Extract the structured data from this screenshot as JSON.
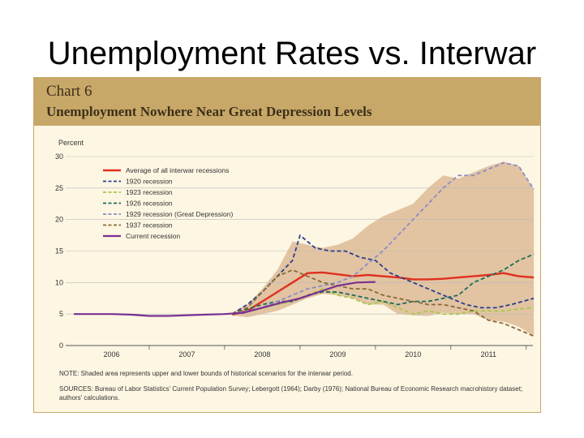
{
  "slide_title": "Unemployment Rates vs. Interwar",
  "chart_data": {
    "type": "line",
    "chart_number": "Chart 6",
    "title": "Unemployment Nowhere Near Great Depression Levels",
    "ylabel": "Percent",
    "ylim": [
      0,
      30
    ],
    "y_ticks": [
      0,
      5,
      10,
      15,
      20,
      25,
      30
    ],
    "x_range": [
      2005.5,
      2011.75
    ],
    "x_ticks": [
      2006,
      2007,
      2008,
      2009,
      2010,
      2011
    ],
    "x_tick_labels": [
      "2006",
      "2007",
      "2008",
      "2009",
      "2010",
      "2011"
    ],
    "band": {
      "name": "Shaded area: upper and lower bounds of historical scenarios",
      "color": "#e2c4a2",
      "upper": [
        [
          2007.6,
          5.2
        ],
        [
          2007.8,
          6.5
        ],
        [
          2008.0,
          9.0
        ],
        [
          2008.2,
          12.0
        ],
        [
          2008.4,
          16.5
        ],
        [
          2008.6,
          16.0
        ],
        [
          2008.8,
          15.5
        ],
        [
          2009.0,
          16.0
        ],
        [
          2009.2,
          17.0
        ],
        [
          2009.4,
          19.0
        ],
        [
          2009.6,
          20.5
        ],
        [
          2009.8,
          21.5
        ],
        [
          2010.0,
          22.5
        ],
        [
          2010.2,
          25.0
        ],
        [
          2010.4,
          27.0
        ],
        [
          2010.6,
          26.5
        ],
        [
          2010.8,
          27.5
        ],
        [
          2011.0,
          28.5
        ],
        [
          2011.2,
          29.2
        ],
        [
          2011.4,
          28.5
        ],
        [
          2011.6,
          24.8
        ]
      ],
      "lower": [
        [
          2011.6,
          1.5
        ],
        [
          2011.4,
          3.0
        ],
        [
          2011.2,
          3.8
        ],
        [
          2011.0,
          4.0
        ],
        [
          2010.8,
          5.0
        ],
        [
          2010.6,
          5.0
        ],
        [
          2010.4,
          5.2
        ],
        [
          2010.2,
          4.7
        ],
        [
          2010.0,
          4.8
        ],
        [
          2009.8,
          5.0
        ],
        [
          2009.6,
          6.5
        ],
        [
          2009.4,
          6.5
        ],
        [
          2009.2,
          7.5
        ],
        [
          2009.0,
          8.0
        ],
        [
          2008.8,
          8.2
        ],
        [
          2008.6,
          7.5
        ],
        [
          2008.4,
          6.5
        ],
        [
          2008.2,
          5.5
        ],
        [
          2008.0,
          5.0
        ],
        [
          2007.8,
          4.5
        ],
        [
          2007.6,
          4.8
        ]
      ]
    },
    "series": [
      {
        "name": "Average of all interwar recessions",
        "color": "#e03020",
        "style": "solid",
        "width": 2.4,
        "points": [
          [
            2007.6,
            4.9
          ],
          [
            2007.8,
            5.5
          ],
          [
            2008.0,
            7.0
          ],
          [
            2008.2,
            8.5
          ],
          [
            2008.4,
            10.0
          ],
          [
            2008.6,
            11.5
          ],
          [
            2008.8,
            11.6
          ],
          [
            2009.0,
            11.3
          ],
          [
            2009.2,
            11.0
          ],
          [
            2009.4,
            11.2
          ],
          [
            2009.6,
            11.0
          ],
          [
            2009.8,
            10.8
          ],
          [
            2010.0,
            10.5
          ],
          [
            2010.2,
            10.5
          ],
          [
            2010.4,
            10.6
          ],
          [
            2010.6,
            10.8
          ],
          [
            2010.8,
            11.0
          ],
          [
            2011.0,
            11.2
          ],
          [
            2011.2,
            11.5
          ],
          [
            2011.4,
            11.0
          ],
          [
            2011.6,
            10.8
          ]
        ]
      },
      {
        "name": "1920 recession",
        "color": "#2a3f8f",
        "style": "dashed",
        "width": 1.8,
        "points": [
          [
            2007.6,
            5.0
          ],
          [
            2007.8,
            6.5
          ],
          [
            2008.0,
            8.5
          ],
          [
            2008.2,
            11.0
          ],
          [
            2008.4,
            13.5
          ],
          [
            2008.5,
            17.5
          ],
          [
            2008.7,
            15.5
          ],
          [
            2008.9,
            15.0
          ],
          [
            2009.1,
            15.0
          ],
          [
            2009.3,
            14.0
          ],
          [
            2009.5,
            13.5
          ],
          [
            2009.7,
            11.5
          ],
          [
            2009.9,
            10.5
          ],
          [
            2010.1,
            9.5
          ],
          [
            2010.3,
            8.5
          ],
          [
            2010.5,
            7.5
          ],
          [
            2010.7,
            6.5
          ],
          [
            2010.9,
            6.0
          ],
          [
            2011.1,
            6.0
          ],
          [
            2011.3,
            6.5
          ],
          [
            2011.6,
            7.5
          ]
        ]
      },
      {
        "name": "1923 recession",
        "color": "#a8c84a",
        "style": "dashed",
        "width": 1.8,
        "points": [
          [
            2007.6,
            5.0
          ],
          [
            2007.8,
            5.5
          ],
          [
            2008.0,
            6.0
          ],
          [
            2008.2,
            6.5
          ],
          [
            2008.4,
            7.0
          ],
          [
            2008.6,
            8.0
          ],
          [
            2008.8,
            9.0
          ],
          [
            2009.0,
            8.0
          ],
          [
            2009.2,
            7.5
          ],
          [
            2009.4,
            6.5
          ],
          [
            2009.6,
            7.0
          ],
          [
            2009.8,
            6.0
          ],
          [
            2010.0,
            5.0
          ],
          [
            2010.2,
            5.5
          ],
          [
            2010.4,
            5.0
          ],
          [
            2010.6,
            5.0
          ],
          [
            2010.8,
            5.5
          ],
          [
            2011.0,
            5.5
          ],
          [
            2011.2,
            5.5
          ],
          [
            2011.4,
            5.8
          ],
          [
            2011.6,
            6.0
          ]
        ]
      },
      {
        "name": "1926 recession",
        "color": "#1d6b5a",
        "style": "dashed",
        "width": 1.8,
        "points": [
          [
            2007.6,
            5.0
          ],
          [
            2007.8,
            5.8
          ],
          [
            2008.0,
            6.5
          ],
          [
            2008.2,
            7.0
          ],
          [
            2008.4,
            7.0
          ],
          [
            2008.6,
            8.0
          ],
          [
            2008.8,
            8.5
          ],
          [
            2009.0,
            8.5
          ],
          [
            2009.2,
            8.0
          ],
          [
            2009.4,
            7.5
          ],
          [
            2009.6,
            7.0
          ],
          [
            2009.8,
            6.5
          ],
          [
            2010.0,
            7.0
          ],
          [
            2010.2,
            7.0
          ],
          [
            2010.4,
            7.5
          ],
          [
            2010.6,
            8.0
          ],
          [
            2010.8,
            10.0
          ],
          [
            2011.0,
            11.0
          ],
          [
            2011.2,
            12.0
          ],
          [
            2011.4,
            13.5
          ],
          [
            2011.6,
            14.5
          ]
        ]
      },
      {
        "name": "1929 recession (Great Depression)",
        "color": "#8c8cc8",
        "style": "dashed",
        "width": 1.8,
        "points": [
          [
            2007.6,
            5.0
          ],
          [
            2007.8,
            5.5
          ],
          [
            2008.0,
            6.0
          ],
          [
            2008.2,
            7.0
          ],
          [
            2008.4,
            8.0
          ],
          [
            2008.6,
            9.0
          ],
          [
            2008.8,
            9.5
          ],
          [
            2009.0,
            10.0
          ],
          [
            2009.2,
            11.0
          ],
          [
            2009.4,
            13.0
          ],
          [
            2009.6,
            15.0
          ],
          [
            2009.8,
            17.5
          ],
          [
            2010.0,
            20.0
          ],
          [
            2010.2,
            22.5
          ],
          [
            2010.4,
            25.0
          ],
          [
            2010.6,
            27.0
          ],
          [
            2010.8,
            27.0
          ],
          [
            2011.0,
            28.0
          ],
          [
            2011.2,
            29.0
          ],
          [
            2011.4,
            28.5
          ],
          [
            2011.6,
            24.8
          ]
        ]
      },
      {
        "name": "1937 recession",
        "color": "#8a6a3a",
        "style": "dashed",
        "width": 1.8,
        "points": [
          [
            2007.6,
            5.0
          ],
          [
            2007.8,
            6.0
          ],
          [
            2008.0,
            8.5
          ],
          [
            2008.2,
            11.0
          ],
          [
            2008.4,
            12.0
          ],
          [
            2008.6,
            11.0
          ],
          [
            2008.8,
            10.0
          ],
          [
            2009.0,
            9.5
          ],
          [
            2009.2,
            9.0
          ],
          [
            2009.4,
            9.0
          ],
          [
            2009.6,
            8.0
          ],
          [
            2009.8,
            7.5
          ],
          [
            2010.0,
            7.0
          ],
          [
            2010.2,
            6.5
          ],
          [
            2010.4,
            6.5
          ],
          [
            2010.6,
            6.0
          ],
          [
            2010.8,
            5.5
          ],
          [
            2011.0,
            4.0
          ],
          [
            2011.2,
            3.5
          ],
          [
            2011.4,
            2.5
          ],
          [
            2011.6,
            1.5
          ]
        ]
      },
      {
        "name": "Current recession",
        "color": "#7a3090",
        "style": "solid",
        "width": 2.2,
        "points": [
          [
            2005.5,
            5.0
          ],
          [
            2005.75,
            5.0
          ],
          [
            2006.0,
            5.0
          ],
          [
            2006.25,
            4.9
          ],
          [
            2006.5,
            4.7
          ],
          [
            2006.75,
            4.7
          ],
          [
            2007.0,
            4.8
          ],
          [
            2007.25,
            4.9
          ],
          [
            2007.5,
            5.0
          ],
          [
            2007.75,
            5.2
          ],
          [
            2008.0,
            6.0
          ],
          [
            2008.25,
            6.8
          ],
          [
            2008.5,
            7.5
          ],
          [
            2008.75,
            8.5
          ],
          [
            2009.0,
            9.5
          ],
          [
            2009.25,
            10.0
          ],
          [
            2009.5,
            10.1
          ]
        ]
      }
    ]
  },
  "note": "NOTE: Shaded area represents upper and lower bounds of historical scenarios for the interwar period.",
  "sources": "SOURCES: Bureau of Labor Statistics' Current Population Survey; Lebergott (1964); Darby (1976); National Bureau of Economic Research macrohistory dataset; authors' calculations."
}
